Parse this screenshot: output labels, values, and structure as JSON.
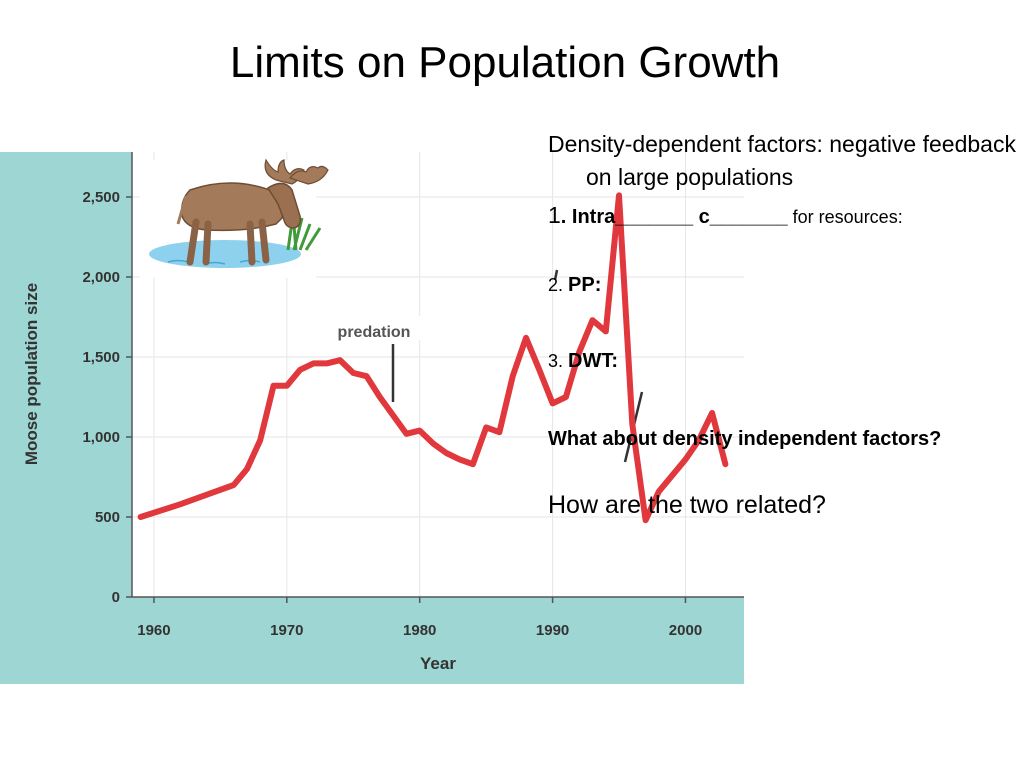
{
  "slide": {
    "title": "Limits on Population Growth"
  },
  "chart_data": {
    "type": "line",
    "xlabel": "Year",
    "ylabel": "Moose population size",
    "xlim": [
      1958.5,
      2003.5
    ],
    "ylim": [
      0,
      2600
    ],
    "x_ticks": [
      "1960",
      "1970",
      "1980",
      "1990",
      "2000"
    ],
    "y_ticks": [
      "0",
      "500",
      "1,000",
      "1,500",
      "2,000",
      "2,500"
    ],
    "annotation": "predation",
    "series": [
      {
        "color": "#e0383c",
        "x": [
          1959,
          1962,
          1964,
          1966,
          1967,
          1968,
          1969,
          1970,
          1971,
          1972,
          1973,
          1974,
          1975,
          1976,
          1977,
          1979,
          1980,
          1981,
          1982,
          1983,
          1984,
          1985,
          1986,
          1987,
          1988,
          1989,
          1990,
          1991,
          1992,
          1993,
          1994,
          1995,
          1996,
          1997,
          1998,
          1999,
          2000,
          2001,
          2002,
          2003
        ],
        "y": [
          500,
          580,
          640,
          700,
          800,
          980,
          1320,
          1320,
          1420,
          1460,
          1460,
          1480,
          1400,
          1380,
          1250,
          1020,
          1040,
          960,
          900,
          860,
          830,
          1060,
          1030,
          1380,
          1620,
          1420,
          1210,
          1250,
          1530,
          1730,
          1660,
          2510,
          1080,
          480,
          660,
          760,
          860,
          980,
          1150,
          830
        ]
      }
    ]
  },
  "text": {
    "p1": "Density-dependent factors: negative feedback on large populations",
    "item1_num": "1",
    "item1_bold": ". Intra_______ c_______",
    "item1_rest": " for resources:",
    "item2_num": "2. ",
    "item2_bold": "PP:",
    "item3_num": "3. ",
    "item3_bold": "DWT:",
    "q1": "What about density independent factors?",
    "q2": "How are the two related?"
  },
  "illustration": {
    "icon": "moose-icon"
  }
}
